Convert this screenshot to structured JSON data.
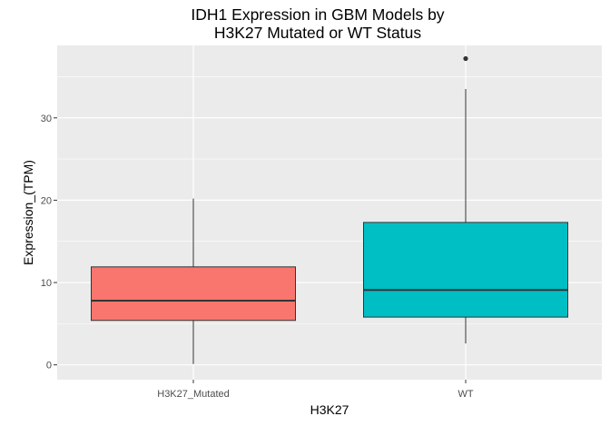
{
  "chart_data": {
    "type": "boxplot",
    "title_lines": [
      "IDH1 Expression in GBM Models by",
      "H3K27 Mutated or WT Status"
    ],
    "xlabel": "H3K27",
    "ylabel": "Expression_(TPM)",
    "ylim": [
      -1.8,
      38.8
    ],
    "yticks": [
      0,
      10,
      20,
      30
    ],
    "grid": true,
    "legend": "none",
    "categories": [
      "H3K27_Mutated",
      "WT"
    ],
    "boxes": [
      {
        "category": "H3K27_Mutated",
        "min": 0.1,
        "q1": 5.4,
        "median": 7.8,
        "q3": 11.9,
        "max": 20.2,
        "outliers": [],
        "fill": "#F8766D"
      },
      {
        "category": "WT",
        "min": 2.6,
        "q1": 5.8,
        "median": 9.1,
        "q3": 17.3,
        "max": 33.5,
        "outliers": [
          37.2
        ],
        "fill": "#00BFC4"
      }
    ],
    "panel_background": "#EBEBEB",
    "grid_color": "#FFFFFF"
  }
}
